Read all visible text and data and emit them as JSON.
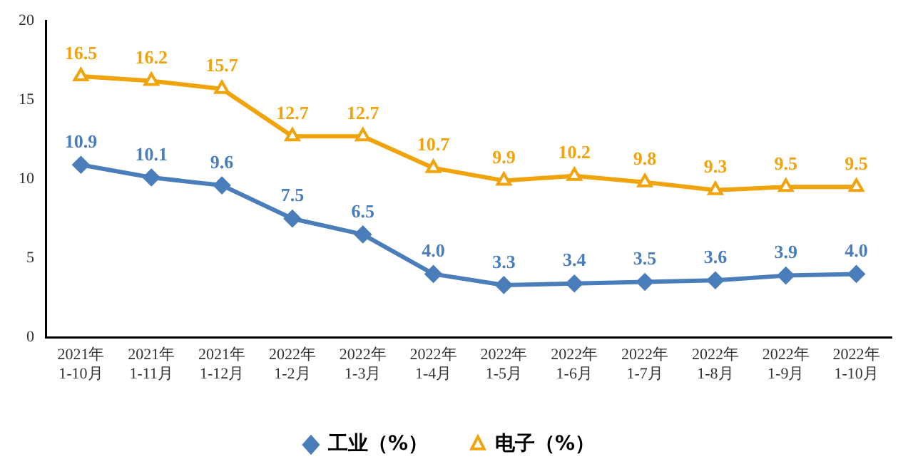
{
  "chart_data": {
    "type": "line",
    "categories": [
      "2021年\n1-10月",
      "2021年\n1-11月",
      "2021年\n1-12月",
      "2022年\n1-2月",
      "2022年\n1-3月",
      "2022年\n1-4月",
      "2022年\n1-5月",
      "2022年\n1-6月",
      "2022年\n1-7月",
      "2022年\n1-8月",
      "2022年\n1-9月",
      "2022年\n1-10月"
    ],
    "series": [
      {
        "name": "工业（%）",
        "color": "#4a7ebb",
        "marker": "diamond",
        "values": [
          10.9,
          10.1,
          9.6,
          7.5,
          6.5,
          4.0,
          3.3,
          3.4,
          3.5,
          3.6,
          3.9,
          4.0
        ],
        "value_labels": [
          "10.9",
          "10.1",
          "9.6",
          "7.5",
          "6.5",
          "4.0",
          "3.3",
          "3.4",
          "3.5",
          "3.6",
          "3.9",
          "4.0"
        ]
      },
      {
        "name": "电子（%）",
        "color": "#f0a30a",
        "marker": "triangle",
        "values": [
          16.5,
          16.2,
          15.7,
          12.7,
          12.7,
          10.7,
          9.9,
          10.2,
          9.8,
          9.3,
          9.5,
          9.5
        ],
        "value_labels": [
          "16.5",
          "16.2",
          "15.7",
          "12.7",
          "12.7",
          "10.7",
          "9.9",
          "10.2",
          "9.8",
          "9.3",
          "9.5",
          "9.5"
        ]
      }
    ],
    "ylim": [
      0,
      20
    ],
    "yticks": [
      0,
      5,
      10,
      15,
      20
    ],
    "grid": false,
    "legend": "bottom",
    "line_style": "solid"
  }
}
